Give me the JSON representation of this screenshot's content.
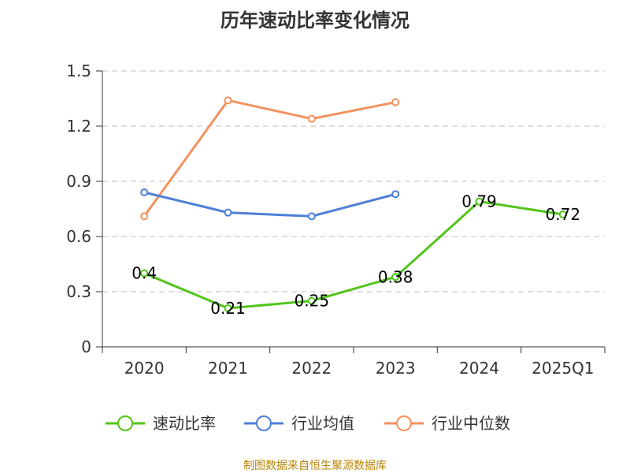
{
  "chart_data": {
    "type": "line",
    "title": "历年速动比率变化情况",
    "categories": [
      "2020",
      "2021",
      "2022",
      "2023",
      "2024",
      "2025Q1"
    ],
    "yticks": [
      "0",
      "0.3",
      "0.6",
      "0.9",
      "1.2",
      "1.5"
    ],
    "ylim": [
      0,
      1.5
    ],
    "grid": true,
    "legend_position": "bottom",
    "series": [
      {
        "name": "速动比率",
        "color": "#52c41a",
        "values": [
          0.4,
          0.21,
          0.25,
          0.38,
          0.79,
          0.72
        ],
        "labels": [
          "0.4",
          "0.21",
          "0.25",
          "0.38",
          "0.79",
          "0.72"
        ]
      },
      {
        "name": "行业均值",
        "color": "#4e7fd6",
        "values": [
          0.84,
          0.73,
          0.71,
          0.83,
          null,
          null
        ]
      },
      {
        "name": "行业中位数",
        "color": "#f4925f",
        "values": [
          0.71,
          1.34,
          1.24,
          1.33,
          null,
          null
        ]
      }
    ]
  },
  "source": "制图数据来自恒生聚源数据库"
}
